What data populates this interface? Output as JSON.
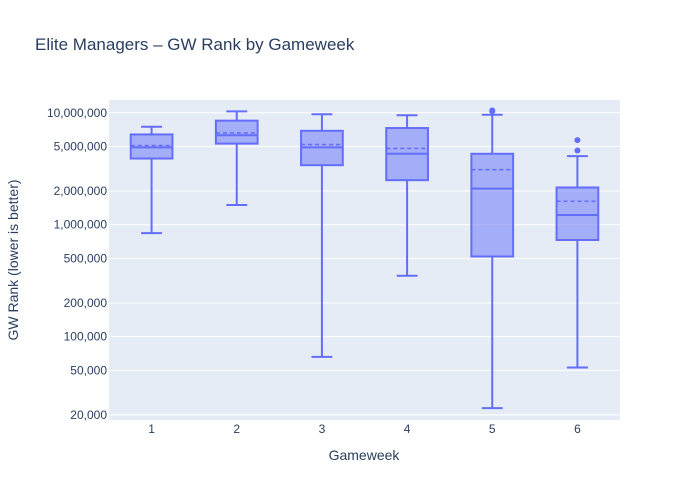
{
  "chart_data": {
    "type": "box",
    "title": "Elite Managers – GW Rank by Gameweek",
    "xlabel": "Gameweek",
    "ylabel": "GW Rank (lower is better)",
    "y_scale": "log",
    "ylim": [
      18000,
      13000000
    ],
    "y_ticks": [
      20000,
      50000,
      100000,
      200000,
      500000,
      1000000,
      2000000,
      5000000,
      10000000
    ],
    "y_tick_labels": [
      "20,000",
      "50,000",
      "100,000",
      "200,000",
      "500,000",
      "1,000,000",
      "2,000,000",
      "5,000,000",
      "10,000,000"
    ],
    "categories": [
      "1",
      "2",
      "3",
      "4",
      "5",
      "6"
    ],
    "show_mean": true,
    "grid": true,
    "colors": {
      "box_line": "#636efa",
      "box_fill": "rgba(99,110,250,0.5)",
      "plot_bg": "#e5ecf6",
      "grid": "#ffffff",
      "text": "#2a3f5f"
    },
    "boxes": [
      {
        "category": "1",
        "lower_fence": 840000,
        "q1": 3900000,
        "median": 4900000,
        "q3": 6400000,
        "upper_fence": 7500000,
        "mean": 5100000,
        "outliers": []
      },
      {
        "category": "2",
        "lower_fence": 1500000,
        "q1": 5300000,
        "median": 6300000,
        "q3": 8500000,
        "upper_fence": 10300000,
        "mean": 6600000,
        "outliers": []
      },
      {
        "category": "3",
        "lower_fence": 66000,
        "q1": 3400000,
        "median": 4900000,
        "q3": 6900000,
        "upper_fence": 9700000,
        "mean": 5200000,
        "outliers": []
      },
      {
        "category": "4",
        "lower_fence": 350000,
        "q1": 2500000,
        "median": 4300000,
        "q3": 7300000,
        "upper_fence": 9500000,
        "mean": 4800000,
        "outliers": []
      },
      {
        "category": "5",
        "lower_fence": 23000,
        "q1": 520000,
        "median": 2100000,
        "q3": 4300000,
        "upper_fence": 9600000,
        "mean": 3100000,
        "outliers": [
          10300000,
          10500000
        ]
      },
      {
        "category": "6",
        "lower_fence": 53000,
        "q1": 730000,
        "median": 1220000,
        "q3": 2150000,
        "upper_fence": 4100000,
        "mean": 1620000,
        "outliers": [
          4600000,
          5700000
        ]
      }
    ]
  }
}
